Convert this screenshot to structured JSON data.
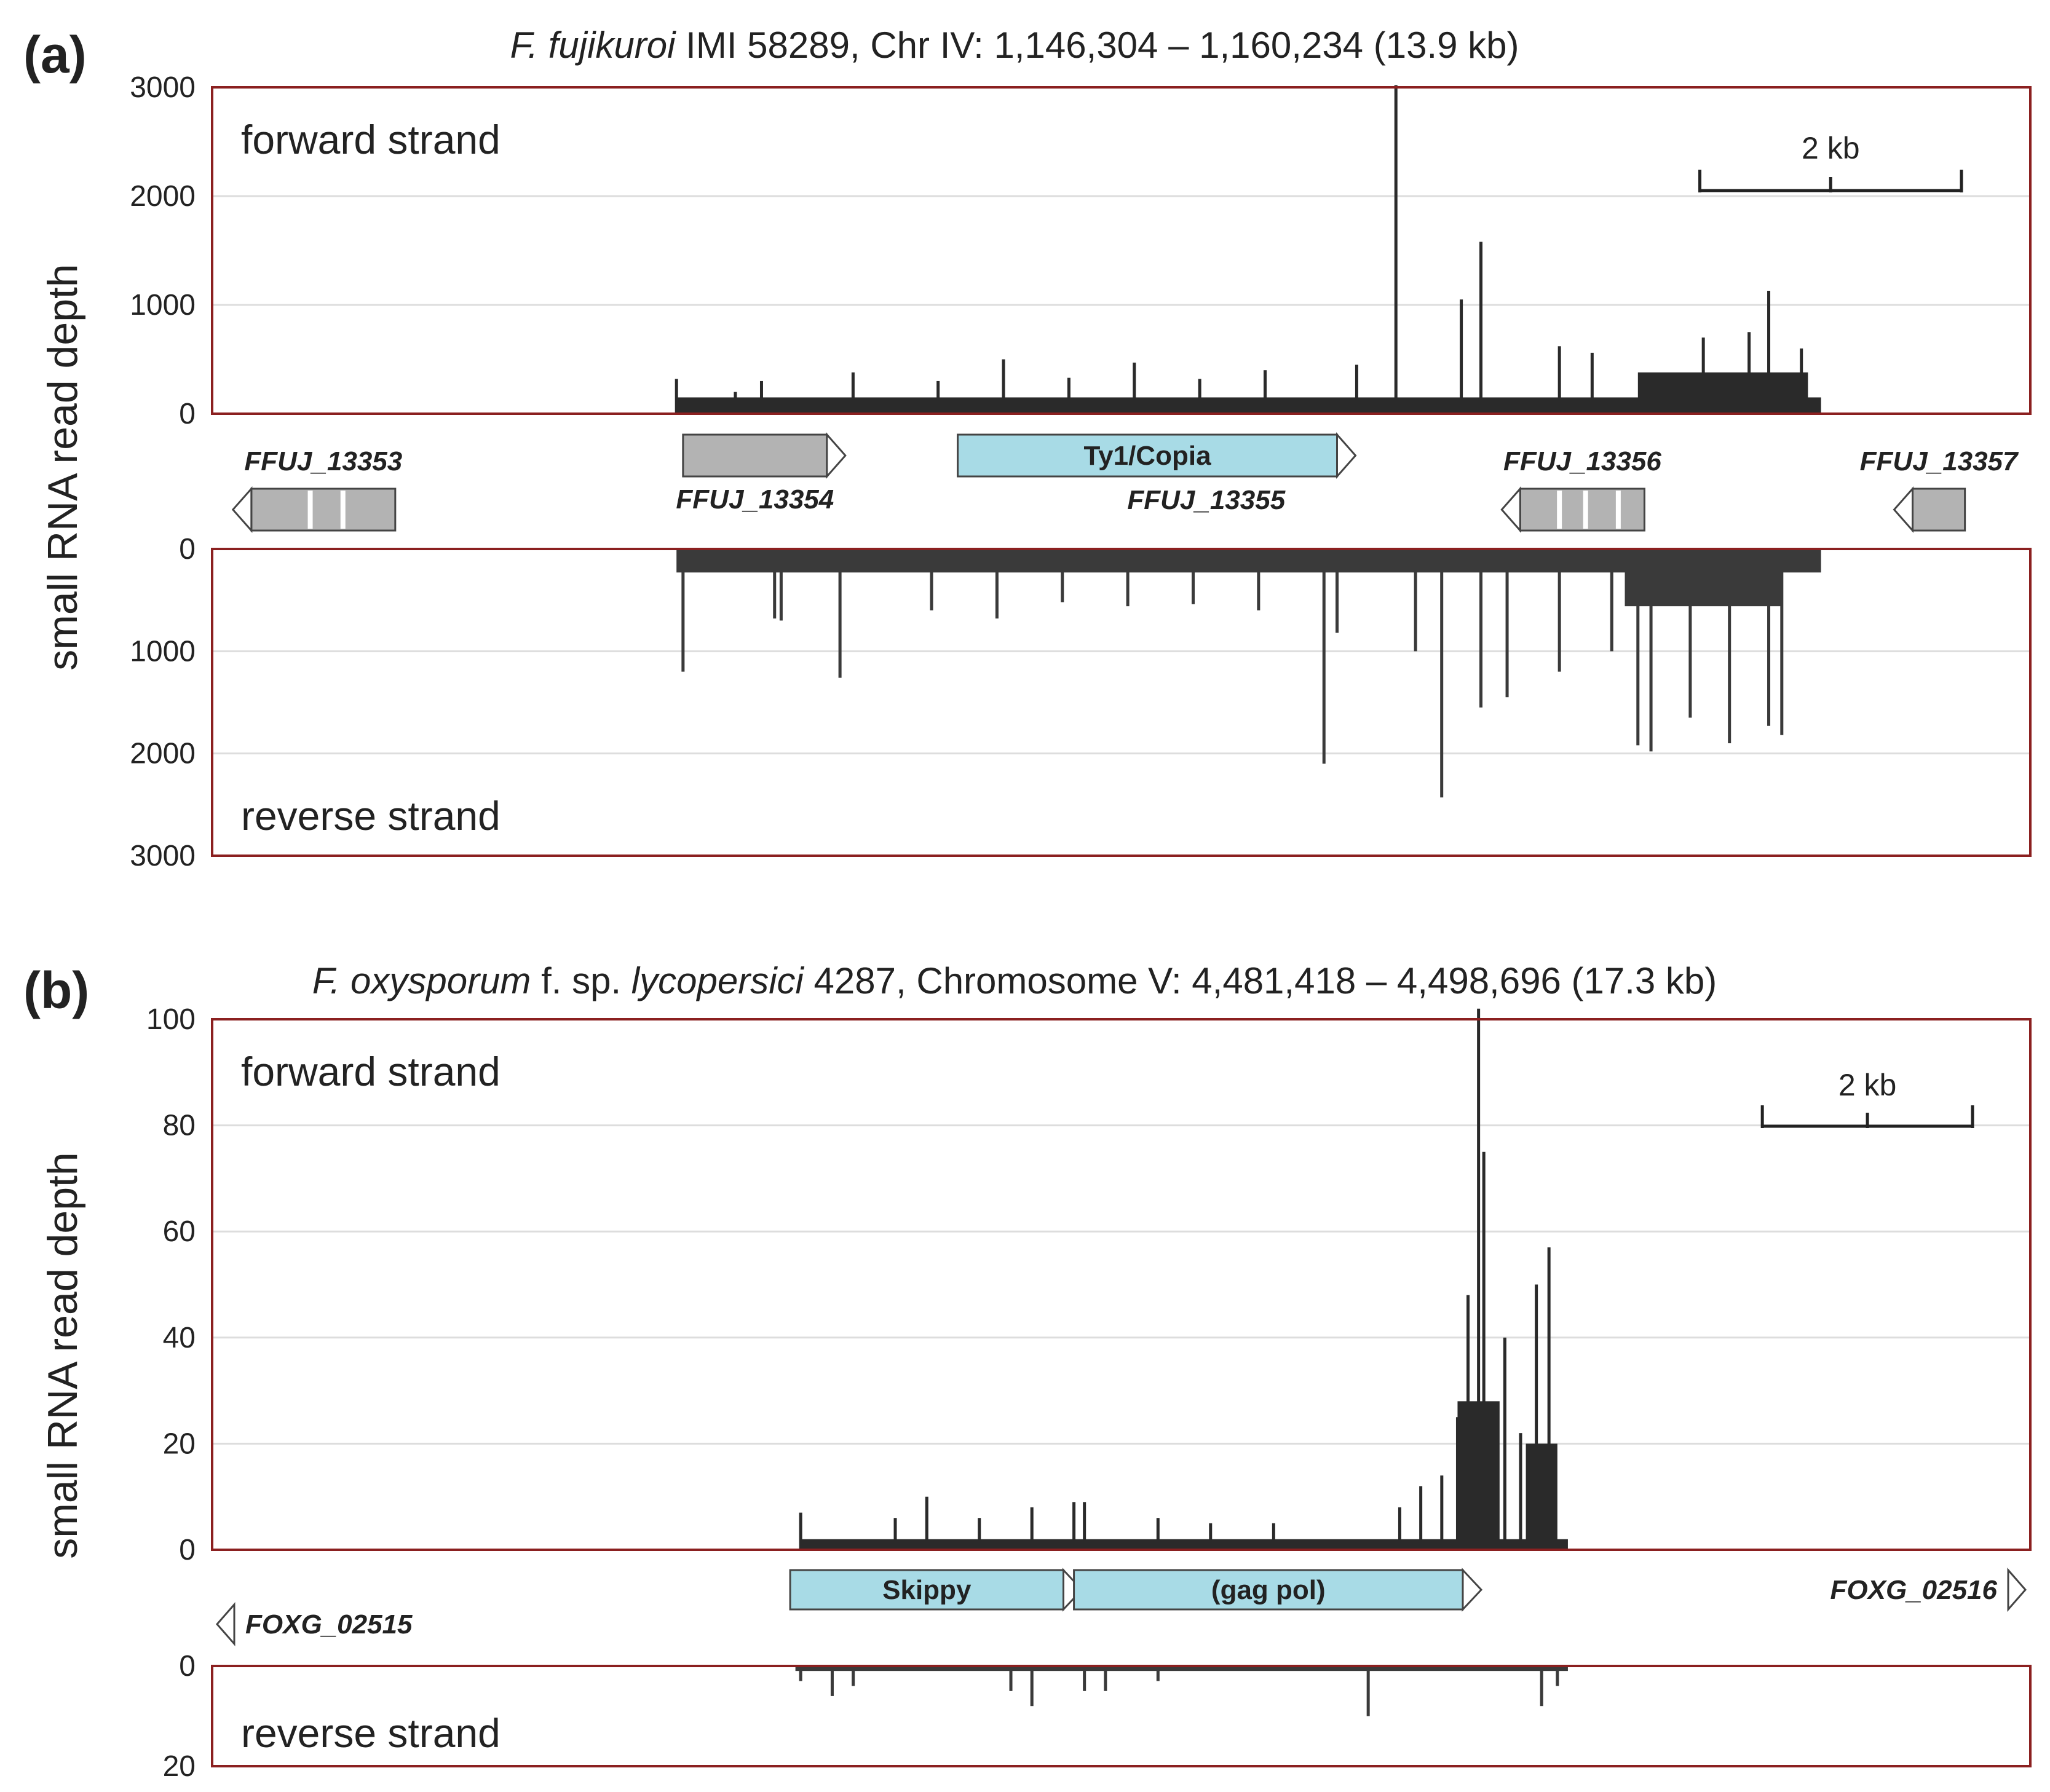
{
  "ylabel": "small RNA read depth",
  "colors": {
    "frame": "#8b2020",
    "grid": "#dddddd",
    "bars": "#2a2a2a",
    "reverse_bars": "#3a3a3a",
    "gene": "#b3b3b3",
    "te": "#a8dbe6"
  },
  "chart_data": [
    {
      "panel": "(a)",
      "type": "bar",
      "title": {
        "species": "F. fujikuroi",
        "rest": " IMI 58289, Chr IV: 1,146,304 – 1,160,234 (13.9 kb)"
      },
      "region_kb": 13.9,
      "ylabel": "small RNA read depth",
      "scale_bar": {
        "label": "2 kb",
        "length_kb": 2
      },
      "forward": {
        "label": "forward strand",
        "ylim": [
          0,
          3000
        ],
        "ticks": [
          "0",
          "1000",
          "2000",
          "3000"
        ],
        "peaks": [
          {
            "x": 3.55,
            "y": 320
          },
          {
            "x": 4.0,
            "y": 200
          },
          {
            "x": 4.2,
            "y": 300
          },
          {
            "x": 4.9,
            "y": 380
          },
          {
            "x": 5.55,
            "y": 300
          },
          {
            "x": 6.05,
            "y": 500
          },
          {
            "x": 6.55,
            "y": 330
          },
          {
            "x": 7.05,
            "y": 470
          },
          {
            "x": 7.55,
            "y": 320
          },
          {
            "x": 8.05,
            "y": 400
          },
          {
            "x": 8.75,
            "y": 450
          },
          {
            "x": 9.05,
            "y": 3020
          },
          {
            "x": 9.55,
            "y": 1050
          },
          {
            "x": 9.7,
            "y": 1580
          },
          {
            "x": 10.3,
            "y": 620
          },
          {
            "x": 10.55,
            "y": 560
          },
          {
            "x": 11.4,
            "y": 700
          },
          {
            "x": 11.75,
            "y": 750
          },
          {
            "x": 11.9,
            "y": 1130
          },
          {
            "x": 12.15,
            "y": 600
          }
        ],
        "blocks": [
          {
            "start": 3.55,
            "end": 12.3,
            "level": 150
          },
          {
            "start": 10.9,
            "end": 12.2,
            "level": 380
          }
        ]
      },
      "reverse": {
        "label": "reverse strand",
        "ylim": [
          0,
          3000
        ],
        "ticks": [
          "0",
          "1000",
          "2000",
          "3000"
        ],
        "peaks": [
          {
            "x": 3.6,
            "y": 1200
          },
          {
            "x": 4.3,
            "y": 680
          },
          {
            "x": 4.35,
            "y": 700
          },
          {
            "x": 4.8,
            "y": 1260
          },
          {
            "x": 5.5,
            "y": 600
          },
          {
            "x": 6.0,
            "y": 680
          },
          {
            "x": 6.5,
            "y": 520
          },
          {
            "x": 7.0,
            "y": 560
          },
          {
            "x": 7.5,
            "y": 540
          },
          {
            "x": 8.0,
            "y": 600
          },
          {
            "x": 8.5,
            "y": 2100
          },
          {
            "x": 8.6,
            "y": 820
          },
          {
            "x": 9.2,
            "y": 1000
          },
          {
            "x": 9.4,
            "y": 2430
          },
          {
            "x": 9.7,
            "y": 1550
          },
          {
            "x": 9.9,
            "y": 1450
          },
          {
            "x": 10.3,
            "y": 1200
          },
          {
            "x": 10.7,
            "y": 1000
          },
          {
            "x": 10.9,
            "y": 1920
          },
          {
            "x": 11.0,
            "y": 1980
          },
          {
            "x": 11.3,
            "y": 1650
          },
          {
            "x": 11.6,
            "y": 1900
          },
          {
            "x": 11.9,
            "y": 1730
          },
          {
            "x": 12.0,
            "y": 1820
          }
        ],
        "blocks": [
          {
            "start": 3.55,
            "end": 12.3,
            "level": 230
          },
          {
            "start": 10.8,
            "end": 12.0,
            "level": 560
          }
        ]
      },
      "features": [
        {
          "name": "FFUJ_13353",
          "kind": "gene",
          "strand": "-",
          "start": 0.3,
          "end": 1.4,
          "row": "lower",
          "label_pos": "above",
          "introns": [
            0.75,
            1.0
          ]
        },
        {
          "name": "FFUJ_13354",
          "kind": "gene",
          "strand": "+",
          "start": 3.6,
          "end": 4.7,
          "row": "upper",
          "label_pos": "below",
          "introns": []
        },
        {
          "name": "Ty1/Copia",
          "kind": "te",
          "strand": "+",
          "start": 5.7,
          "end": 8.6,
          "row": "upper",
          "label_pos": "inside",
          "introns": []
        },
        {
          "name": "FFUJ_13355",
          "kind": "label",
          "strand": "",
          "start": 6.6,
          "end": 8.6,
          "row": "upper",
          "label_pos": "below",
          "introns": []
        },
        {
          "name": "FFUJ_13356",
          "kind": "gene",
          "strand": "-",
          "start": 10.0,
          "end": 10.95,
          "row": "lower",
          "label_pos": "above",
          "introns": [
            10.3,
            10.5,
            10.75
          ]
        },
        {
          "name": "FFUJ_13357",
          "kind": "gene",
          "strand": "-",
          "start": 13.0,
          "end": 13.4,
          "row": "lower",
          "label_pos": "above",
          "introns": []
        }
      ]
    },
    {
      "panel": "(b)",
      "type": "bar",
      "title": {
        "species": "F. oxysporum",
        "mid": " f. sp. ",
        "forma": "lycopersici",
        "rest": " 4287, Chromosome V: 4,481,418 – 4,498,696 (17.3 kb)"
      },
      "region_kb": 17.3,
      "ylabel": "small RNA read depth",
      "scale_bar": {
        "label": "2 kb",
        "length_kb": 2
      },
      "forward": {
        "label": "forward strand",
        "ylim": [
          0,
          100
        ],
        "ticks": [
          "0",
          "20",
          "40",
          "60",
          "80",
          "100"
        ],
        "peaks": [
          {
            "x": 5.6,
            "y": 7
          },
          {
            "x": 6.5,
            "y": 6
          },
          {
            "x": 6.8,
            "y": 10
          },
          {
            "x": 7.3,
            "y": 6
          },
          {
            "x": 7.8,
            "y": 8
          },
          {
            "x": 8.2,
            "y": 9
          },
          {
            "x": 8.3,
            "y": 9
          },
          {
            "x": 9.0,
            "y": 6
          },
          {
            "x": 9.5,
            "y": 5
          },
          {
            "x": 10.1,
            "y": 5
          },
          {
            "x": 11.3,
            "y": 8
          },
          {
            "x": 11.5,
            "y": 12
          },
          {
            "x": 11.7,
            "y": 14
          },
          {
            "x": 11.85,
            "y": 25
          },
          {
            "x": 11.95,
            "y": 48
          },
          {
            "x": 12.05,
            "y": 102
          },
          {
            "x": 12.1,
            "y": 75
          },
          {
            "x": 12.3,
            "y": 40
          },
          {
            "x": 12.45,
            "y": 22
          },
          {
            "x": 12.6,
            "y": 50
          },
          {
            "x": 12.72,
            "y": 57
          }
        ],
        "blocks": [
          {
            "start": 5.6,
            "end": 12.9,
            "level": 2
          },
          {
            "start": 11.85,
            "end": 12.25,
            "level": 28
          },
          {
            "start": 12.5,
            "end": 12.8,
            "level": 20
          }
        ]
      },
      "reverse": {
        "label": "reverse strand",
        "ylim": [
          0,
          20
        ],
        "ticks": [
          "0",
          "20"
        ],
        "peaks": [
          {
            "x": 5.6,
            "y": 3
          },
          {
            "x": 5.9,
            "y": 6
          },
          {
            "x": 6.1,
            "y": 4
          },
          {
            "x": 7.6,
            "y": 5
          },
          {
            "x": 7.8,
            "y": 8
          },
          {
            "x": 8.3,
            "y": 5
          },
          {
            "x": 8.5,
            "y": 5
          },
          {
            "x": 9.0,
            "y": 3
          },
          {
            "x": 11.0,
            "y": 10
          },
          {
            "x": 12.65,
            "y": 8
          },
          {
            "x": 12.8,
            "y": 4
          }
        ],
        "blocks": [
          {
            "start": 5.55,
            "end": 12.9,
            "level": 1
          }
        ]
      },
      "features": [
        {
          "name": "FOXG_02515",
          "kind": "gene",
          "strand": "-",
          "start": 0.0,
          "end": 0.0,
          "row": "lower",
          "label_pos": "right",
          "introns": []
        },
        {
          "name": "Skippy",
          "kind": "te",
          "strand": "+",
          "start": 5.5,
          "end": 8.1,
          "row": "upper",
          "label_pos": "inside",
          "introns": []
        },
        {
          "name": "(gag pol)",
          "kind": "te",
          "strand": "+",
          "start": 8.2,
          "end": 11.9,
          "row": "upper",
          "label_pos": "inside",
          "introns": []
        },
        {
          "name": "FOXG_02516",
          "kind": "gene",
          "strand": "+",
          "start": 17.3,
          "end": 17.3,
          "row": "upper",
          "label_pos": "left",
          "introns": []
        }
      ]
    }
  ]
}
